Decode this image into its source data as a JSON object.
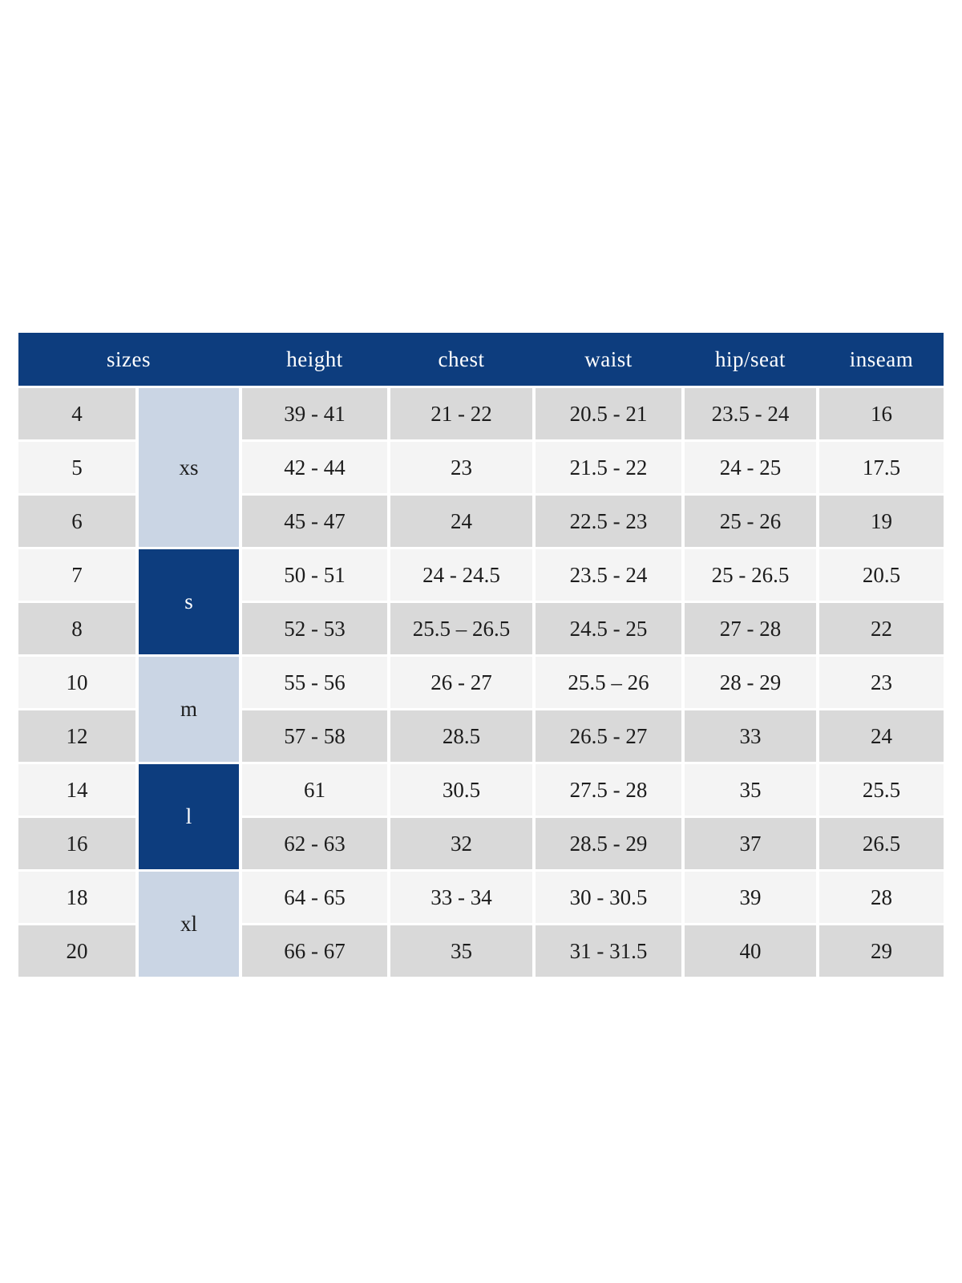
{
  "colors": {
    "page_bg": "#ffffff",
    "header_bg": "#0d3d7e",
    "header_text": "#ffffff",
    "group_light_bg": "#cad5e4",
    "group_dark_bg": "#0d3d7e",
    "row_gray_bg": "#d9d9d9",
    "row_light_bg": "#f4f4f4",
    "body_text": "#1c1c1c"
  },
  "chart_data": {
    "type": "table",
    "header_labels": {
      "sizes": "sizes",
      "height": "height",
      "chest": "chest",
      "waist": "waist",
      "hip_seat": "hip/seat",
      "inseam": "inseam"
    },
    "size_groups": [
      {
        "label": "xs",
        "style": "light",
        "rows": 3
      },
      {
        "label": "s",
        "style": "dark",
        "rows": 2
      },
      {
        "label": "m",
        "style": "light",
        "rows": 2
      },
      {
        "label": "l",
        "style": "dark",
        "rows": 2
      },
      {
        "label": "xl",
        "style": "light",
        "rows": 2
      }
    ],
    "rows": [
      {
        "size": "4",
        "height": "39 - 41",
        "chest": "21 - 22",
        "waist": "20.5 - 21",
        "hip_seat": "23.5 - 24",
        "inseam": "16"
      },
      {
        "size": "5",
        "height": "42 - 44",
        "chest": "23",
        "waist": "21.5 - 22",
        "hip_seat": "24 - 25",
        "inseam": "17.5"
      },
      {
        "size": "6",
        "height": "45 - 47",
        "chest": "24",
        "waist": "22.5 - 23",
        "hip_seat": "25 - 26",
        "inseam": "19"
      },
      {
        "size": "7",
        "height": "50 - 51",
        "chest": "24 - 24.5",
        "waist": "23.5 - 24",
        "hip_seat": "25 - 26.5",
        "inseam": "20.5"
      },
      {
        "size": "8",
        "height": "52 - 53",
        "chest": "25.5 – 26.5",
        "waist": "24.5 - 25",
        "hip_seat": "27 - 28",
        "inseam": "22"
      },
      {
        "size": "10",
        "height": "55 - 56",
        "chest": "26 - 27",
        "waist": "25.5 – 26",
        "hip_seat": "28 - 29",
        "inseam": "23"
      },
      {
        "size": "12",
        "height": "57 - 58",
        "chest": "28.5",
        "waist": "26.5 - 27",
        "hip_seat": "33",
        "inseam": "24"
      },
      {
        "size": "14",
        "height": "61",
        "chest": "30.5",
        "waist": "27.5 - 28",
        "hip_seat": "35",
        "inseam": "25.5"
      },
      {
        "size": "16",
        "height": "62 - 63",
        "chest": "32",
        "waist": "28.5 - 29",
        "hip_seat": "37",
        "inseam": "26.5"
      },
      {
        "size": "18",
        "height": "64 - 65",
        "chest": "33 - 34",
        "waist": "30 - 30.5",
        "hip_seat": "39",
        "inseam": "28"
      },
      {
        "size": "20",
        "height": "66 - 67",
        "chest": "35",
        "waist": "31 - 31.5",
        "hip_seat": "40",
        "inseam": "29"
      }
    ]
  }
}
